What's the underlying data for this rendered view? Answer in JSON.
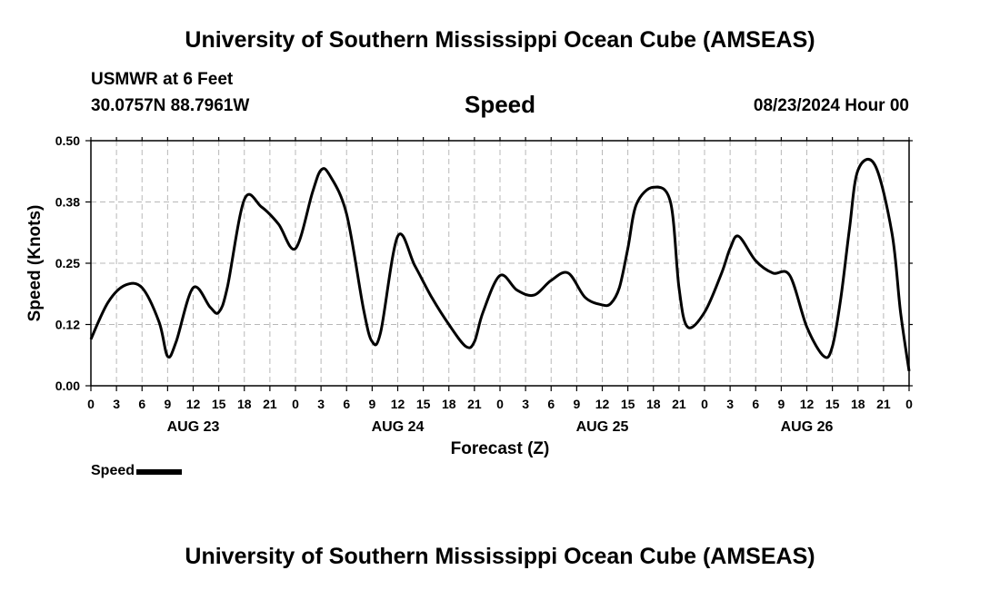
{
  "header": {
    "title": "University of Southern Mississippi Ocean Cube (AMSEAS)",
    "station": "USMWR at 6 Feet",
    "coords": "30.0757N  88.7961W",
    "parameter": "Speed",
    "datetime": "08/23/2024 Hour 00"
  },
  "footer": {
    "title": "University of Southern Mississippi Ocean Cube (AMSEAS)"
  },
  "legend": {
    "label": "Speed",
    "color": "#000000"
  },
  "chart_data": {
    "type": "line",
    "title": "Speed",
    "xlabel": "Forecast (Z)",
    "ylabel": "Speed (Knots)",
    "xlim": [
      0,
      96
    ],
    "ylim": [
      0,
      0.5
    ],
    "yticks": [
      {
        "value": 0.0,
        "label": "0.00"
      },
      {
        "value": 0.125,
        "label": "0.12"
      },
      {
        "value": 0.25,
        "label": "0.25"
      },
      {
        "value": 0.375,
        "label": "0.38"
      },
      {
        "value": 0.5,
        "label": "0.50"
      }
    ],
    "xtick_labels": [
      "0",
      "3",
      "6",
      "9",
      "12",
      "15",
      "18",
      "21",
      "0",
      "3",
      "6",
      "9",
      "12",
      "15",
      "18",
      "21",
      "0",
      "3",
      "6",
      "9",
      "12",
      "15",
      "18",
      "21",
      "0",
      "3",
      "6",
      "9",
      "12",
      "15",
      "18",
      "21",
      "0"
    ],
    "day_labels": [
      {
        "hour": 12,
        "label": "AUG 23"
      },
      {
        "hour": 36,
        "label": "AUG 24"
      },
      {
        "hour": 60,
        "label": "AUG 25"
      },
      {
        "hour": 84,
        "label": "AUG 26"
      }
    ],
    "grid": true,
    "series": [
      {
        "name": "Speed",
        "color": "#000000",
        "x": [
          0,
          2,
          4,
          6,
          8,
          9,
          10,
          12,
          14,
          15,
          16,
          18,
          20,
          22,
          24,
          26,
          27,
          28,
          30,
          32,
          33,
          34,
          36,
          38,
          40,
          42,
          44,
          45,
          46,
          48,
          50,
          52,
          54,
          56,
          58,
          60,
          61,
          62,
          63,
          64,
          66,
          68,
          69,
          70,
          72,
          74,
          75,
          76,
          78,
          80,
          82,
          84,
          86,
          87,
          88,
          89,
          90,
          92,
          94,
          95,
          96
        ],
        "y": [
          0.095,
          0.17,
          0.205,
          0.2,
          0.13,
          0.06,
          0.09,
          0.2,
          0.16,
          0.15,
          0.2,
          0.38,
          0.365,
          0.33,
          0.28,
          0.395,
          0.44,
          0.43,
          0.35,
          0.155,
          0.09,
          0.11,
          0.305,
          0.245,
          0.18,
          0.125,
          0.08,
          0.09,
          0.15,
          0.225,
          0.195,
          0.185,
          0.215,
          0.23,
          0.18,
          0.165,
          0.168,
          0.2,
          0.28,
          0.37,
          0.405,
          0.375,
          0.2,
          0.12,
          0.15,
          0.23,
          0.28,
          0.305,
          0.255,
          0.23,
          0.225,
          0.12,
          0.06,
          0.08,
          0.18,
          0.32,
          0.44,
          0.45,
          0.31,
          0.15,
          0.03
        ]
      }
    ]
  }
}
